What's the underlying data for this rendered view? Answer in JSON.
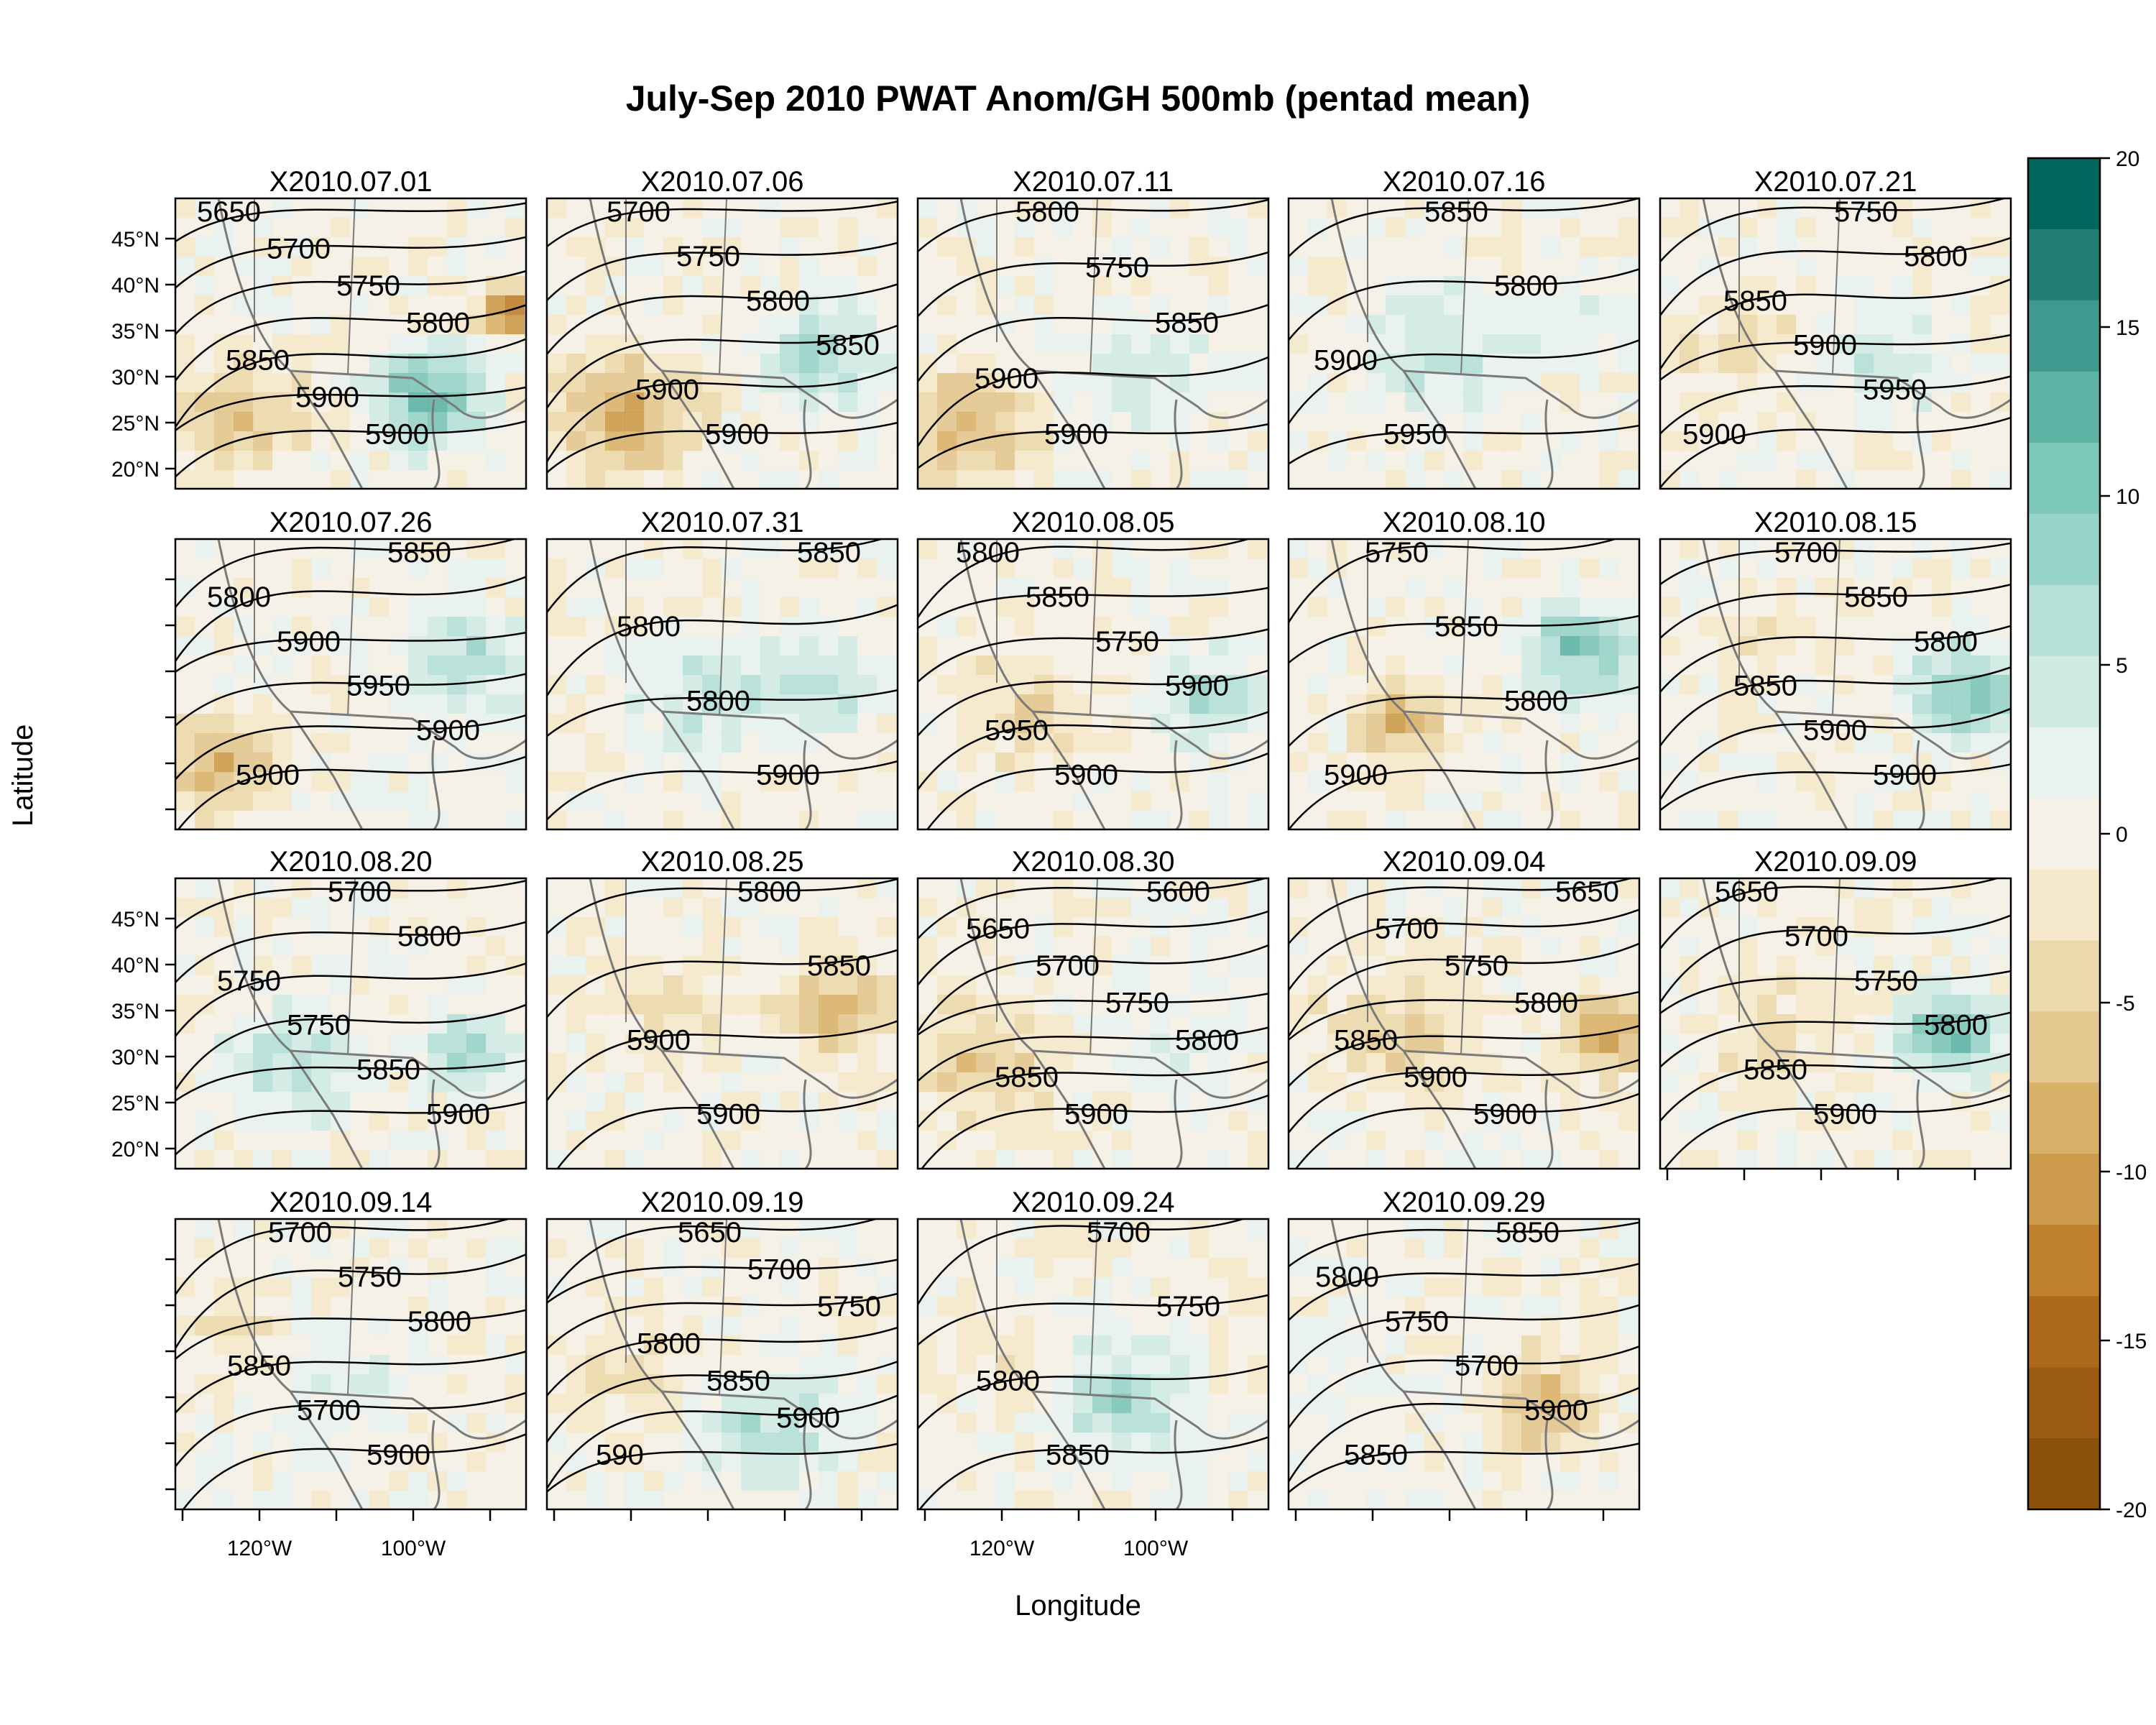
{
  "title": "July-Sep 2010 PWAT Anom/GH 500mb (pentad mean)",
  "xlabel": "Longitude",
  "ylabel": "Latitude",
  "lat_tick_labels": [
    "45°N",
    "40°N",
    "35°N",
    "30°N",
    "25°N",
    "20°N"
  ],
  "lon_tick_labels": [
    "120°W",
    "100°W"
  ],
  "colorbar": {
    "tick_labels": [
      "20",
      "15",
      "10",
      "5",
      "0",
      "-5",
      "-10",
      "-15",
      "-20"
    ],
    "range": [
      -20,
      20
    ],
    "low_color": "#8c510a",
    "mid_color": "#f5f0e6",
    "high_color": "#01665e",
    "levels": [
      "#8c510a",
      "#9c5d12",
      "#ad6a1c",
      "#bf812d",
      "#cc9a4b",
      "#d9b26a",
      "#e3c78f",
      "#ecd9ab",
      "#f5e8cb",
      "#f6f1e6",
      "#e8f2ef",
      "#d0ebe4",
      "#b5e0d8",
      "#97d3c8",
      "#7cc7b8",
      "#5fb3a6",
      "#3f998e",
      "#237f76",
      "#01665e"
    ]
  },
  "contour_color": "#000000",
  "border_color": "#7a7a7a",
  "panels": [
    {
      "label": "X2010.07.01",
      "contours": [
        "5650",
        "5700",
        "5750",
        "5800",
        "5850",
        "5900",
        "5900"
      ]
    },
    {
      "label": "X2010.07.06",
      "contours": [
        "5700",
        "5750",
        "5800",
        "5850",
        "5900",
        "5900"
      ]
    },
    {
      "label": "X2010.07.11",
      "contours": [
        "5800",
        "5750",
        "5850",
        "5900",
        "5900"
      ]
    },
    {
      "label": "X2010.07.16",
      "contours": [
        "5850",
        "5800",
        "5900",
        "5950"
      ]
    },
    {
      "label": "X2010.07.21",
      "contours": [
        "5750",
        "5800",
        "5850",
        "5900",
        "5950",
        "5900"
      ]
    },
    {
      "label": "X2010.07.26",
      "contours": [
        "5850",
        "5800",
        "5900",
        "5950",
        "5900",
        "5900"
      ]
    },
    {
      "label": "X2010.07.31",
      "contours": [
        "5850",
        "5800",
        "5800",
        "5900"
      ]
    },
    {
      "label": "X2010.08.05",
      "contours": [
        "5800",
        "5850",
        "5750",
        "5900",
        "5950",
        "5900"
      ]
    },
    {
      "label": "X2010.08.10",
      "contours": [
        "5750",
        "5850",
        "5800",
        "5900"
      ]
    },
    {
      "label": "X2010.08.15",
      "contours": [
        "5700",
        "5850",
        "5800",
        "5850",
        "5900",
        "5900"
      ]
    },
    {
      "label": "X2010.08.20",
      "contours": [
        "5700",
        "5800",
        "5750",
        "5750",
        "5850",
        "5900"
      ]
    },
    {
      "label": "X2010.08.25",
      "contours": [
        "5800",
        "5850",
        "5900",
        "5900"
      ]
    },
    {
      "label": "X2010.08.30",
      "contours": [
        "5600",
        "5650",
        "5700",
        "5750",
        "5800",
        "5850",
        "5900"
      ]
    },
    {
      "label": "X2010.09.04",
      "contours": [
        "5650",
        "5700",
        "5750",
        "5800",
        "5850",
        "5900",
        "5900"
      ]
    },
    {
      "label": "X2010.09.09",
      "contours": [
        "5650",
        "5700",
        "5750",
        "5800",
        "5850",
        "5900"
      ]
    },
    {
      "label": "X2010.09.14",
      "contours": [
        "5700",
        "5750",
        "5800",
        "5850",
        "5700",
        "5900"
      ]
    },
    {
      "label": "X2010.09.19",
      "contours": [
        "5650",
        "5700",
        "5750",
        "5800",
        "5850",
        "5900",
        "590"
      ]
    },
    {
      "label": "X2010.09.24",
      "contours": [
        "5700",
        "5750",
        "5800",
        "5850"
      ]
    },
    {
      "label": "X2010.09.29",
      "contours": [
        "5850",
        "5800",
        "5750",
        "5700",
        "5900",
        "5850"
      ]
    }
  ]
}
